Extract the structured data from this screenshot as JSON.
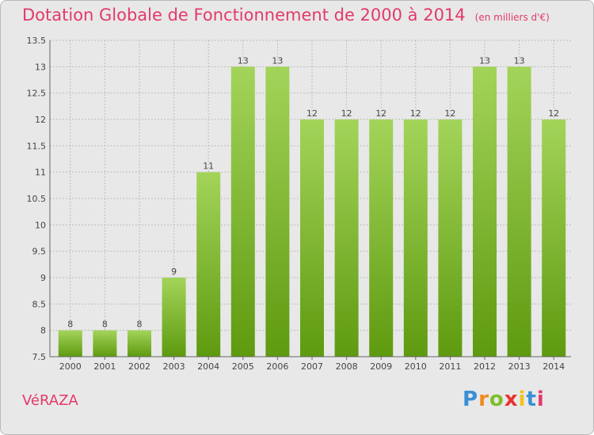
{
  "chart_data": {
    "type": "bar",
    "title": "Dotation Globale de Fonctionnement de 2000 à 2014",
    "subtitle": "(en milliers d'€)",
    "categories": [
      "2000",
      "2001",
      "2002",
      "2003",
      "2004",
      "2005",
      "2006",
      "2007",
      "2008",
      "2009",
      "2010",
      "2011",
      "2012",
      "2013",
      "2014"
    ],
    "values": [
      8,
      8,
      8,
      9,
      11,
      13,
      13,
      12,
      12,
      12,
      12,
      12,
      13,
      13,
      12
    ],
    "ylim": [
      7.5,
      13.5
    ],
    "yticks": [
      7.5,
      8,
      8.5,
      9,
      9.5,
      10,
      10.5,
      11,
      11.5,
      12,
      12.5,
      13,
      13.5
    ],
    "grid": true,
    "bar_color_top": "#a3d45a",
    "bar_color_bottom": "#5e9a0f"
  },
  "commune": "VéRAZA",
  "logo": {
    "letters": [
      "P",
      "r",
      "o",
      "x",
      "i",
      "t",
      "i"
    ],
    "colors": [
      "#3a8fd6",
      "#f08a1c",
      "#7cbf2a",
      "#e8322e",
      "#f3c21a",
      "#3a8fd6",
      "#e23a6a"
    ]
  }
}
